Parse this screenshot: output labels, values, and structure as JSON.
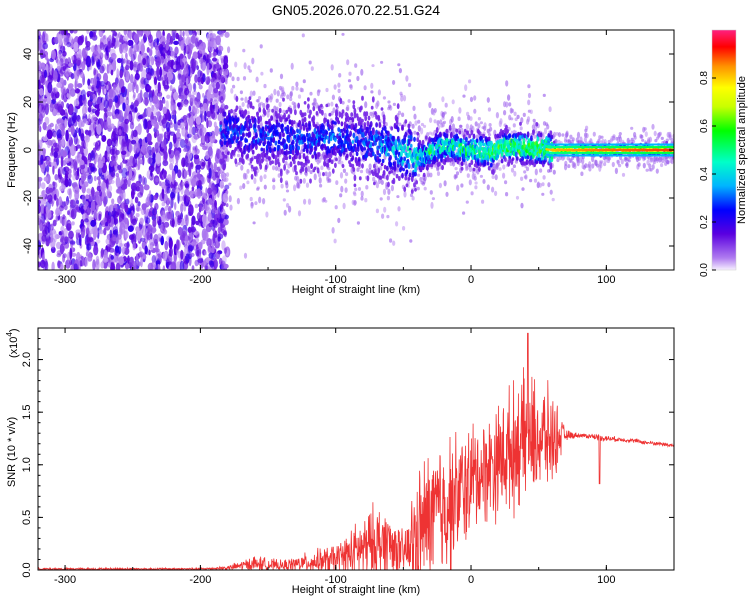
{
  "title": "GN05.2026.070.22.51.G24",
  "chart_data": [
    {
      "type": "heatmap",
      "xlabel": "Height of straight line (km)",
      "ylabel": "Frequency (Hz)",
      "xlim": [
        -320,
        150
      ],
      "ylim": [
        -50,
        50
      ],
      "xticks": [
        -300,
        -200,
        -100,
        0,
        100
      ],
      "xtick_labels": [
        "-300",
        "-200",
        "-100",
        "0",
        "100"
      ],
      "yticks": [
        -40,
        -20,
        0,
        20,
        40
      ],
      "ytick_labels": [
        "-40",
        "-20",
        "0",
        "20",
        "40"
      ],
      "colorbar": {
        "label": "Normalized spectral amplitude",
        "range": [
          0,
          1
        ],
        "ticks": [
          0.0,
          0.2,
          0.4,
          0.6,
          0.8
        ],
        "tick_labels": [
          "0.0",
          "0.2",
          "0.4",
          "0.6",
          "0.8"
        ]
      },
      "ridge": {
        "x": [
          -185,
          -160,
          -140,
          -120,
          -100,
          -80,
          -60,
          -45,
          -35,
          -25,
          -15,
          -5,
          5,
          15,
          25,
          35,
          45,
          60,
          80,
          100,
          120,
          150
        ],
        "freq": [
          8,
          6,
          5,
          4,
          5,
          3,
          1,
          -2,
          -3,
          1,
          2,
          0,
          0,
          -1,
          2,
          1,
          1,
          0,
          0,
          0,
          0,
          0
        ],
        "amplitude": [
          0.3,
          0.3,
          0.3,
          0.32,
          0.33,
          0.33,
          0.38,
          0.5,
          0.55,
          0.55,
          0.6,
          0.62,
          0.68,
          0.72,
          0.72,
          0.75,
          0.78,
          0.82,
          0.85,
          0.87,
          0.88,
          0.9
        ]
      },
      "noise_region": {
        "x": [
          -320,
          -180
        ],
        "amplitude": 0.2
      }
    },
    {
      "type": "line",
      "xlabel": "Height of straight line (km)",
      "ylabel": "SNR (10 * v/v)",
      "ylabel_scale": "(x10",
      "ylabel_scale_exp": "4",
      "ylabel_scale_close": ")",
      "xlim": [
        -320,
        150
      ],
      "ylim": [
        0,
        2.3
      ],
      "xticks": [
        -300,
        -200,
        -100,
        0,
        100
      ],
      "xtick_labels": [
        "-300",
        "-200",
        "-100",
        "0",
        "100"
      ],
      "yticks": [
        0.0,
        0.5,
        1.0,
        1.5,
        2.0
      ],
      "ytick_labels": [
        "0.0",
        "0.5",
        "1.0",
        "1.5",
        "2.0"
      ],
      "color": "#ee3333",
      "envelope": {
        "x": [
          -320,
          -200,
          -180,
          -160,
          -140,
          -120,
          -100,
          -80,
          -70,
          -60,
          -50,
          -40,
          -30,
          -20,
          -10,
          0,
          10,
          20,
          30,
          40,
          50,
          60,
          70,
          80,
          90,
          100,
          110,
          120,
          130,
          140,
          150
        ],
        "mean": [
          0.01,
          0.01,
          0.02,
          0.06,
          0.04,
          0.07,
          0.1,
          0.2,
          0.25,
          0.25,
          0.15,
          0.3,
          0.5,
          0.6,
          0.7,
          0.85,
          0.95,
          1.05,
          1.15,
          1.25,
          1.25,
          1.25,
          1.28,
          1.28,
          1.27,
          1.25,
          1.24,
          1.23,
          1.21,
          1.2,
          1.18
        ],
        "spread": [
          0.01,
          0.01,
          0.02,
          0.08,
          0.05,
          0.1,
          0.15,
          0.3,
          0.4,
          0.35,
          0.2,
          0.6,
          0.7,
          0.7,
          0.6,
          0.55,
          0.5,
          0.55,
          0.6,
          0.6,
          0.55,
          0.45,
          0.05,
          0.02,
          0.03,
          0.03,
          0.02,
          0.02,
          0.02,
          0.02,
          0.02
        ]
      },
      "peak": {
        "x": 42,
        "y": 2.25
      }
    }
  ]
}
